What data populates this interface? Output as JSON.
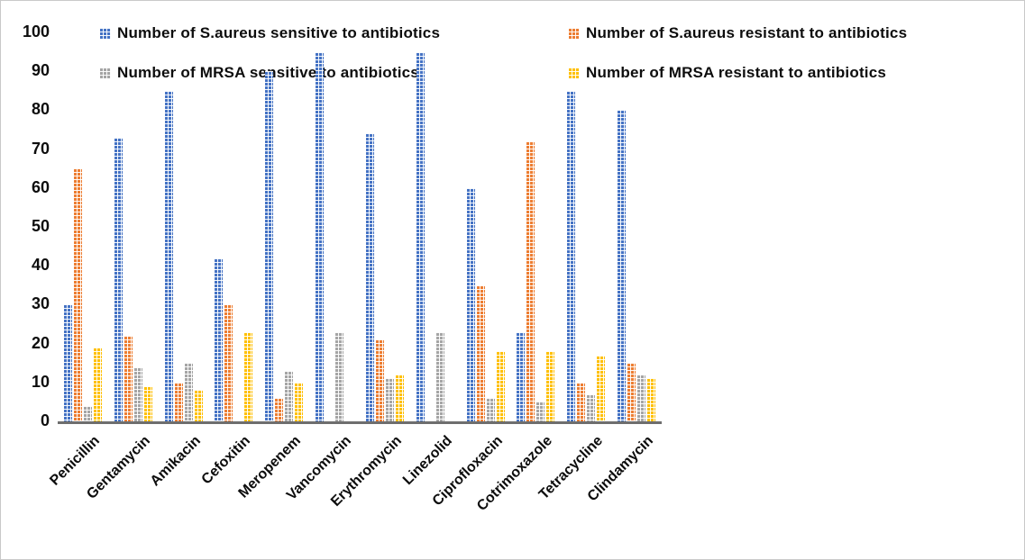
{
  "chart_data": {
    "type": "bar",
    "title": "",
    "xlabel": "",
    "ylabel": "",
    "ylim": [
      0,
      100
    ],
    "yticks": [
      0,
      10,
      20,
      30,
      40,
      50,
      60,
      70,
      80,
      90,
      100
    ],
    "grid": false,
    "legend_position": "top",
    "categories": [
      "Penicillin",
      "Gentamycin",
      "Amikacin",
      "Cefoxitin",
      "Meropenem",
      "Vancomycin",
      "Erythromycin",
      "Linezolid",
      "Ciprofloxacin",
      "Cotrimoxazole",
      "Tetracycline",
      "Clindamycin"
    ],
    "series": [
      {
        "name": "Number of S.aureus sensitive to antibiotics",
        "color": "#4472C4",
        "values": [
          30,
          73,
          85,
          42,
          90,
          95,
          74,
          95,
          60,
          23,
          85,
          80
        ]
      },
      {
        "name": "Number of S.aureus resistant to antibiotics",
        "color": "#ED7D31",
        "values": [
          65,
          22,
          10,
          30,
          6,
          0,
          21,
          0,
          35,
          72,
          10,
          15
        ]
      },
      {
        "name": "Number of MRSA sensitive to antibiotics",
        "color": "#A5A5A5",
        "values": [
          4,
          14,
          15,
          0,
          13,
          23,
          11,
          23,
          6,
          5,
          7,
          12
        ]
      },
      {
        "name": "Number of MRSA resistant to antibiotics",
        "color": "#FFC000",
        "values": [
          19,
          9,
          8,
          23,
          10,
          0,
          12,
          0,
          18,
          18,
          17,
          11
        ]
      }
    ]
  }
}
